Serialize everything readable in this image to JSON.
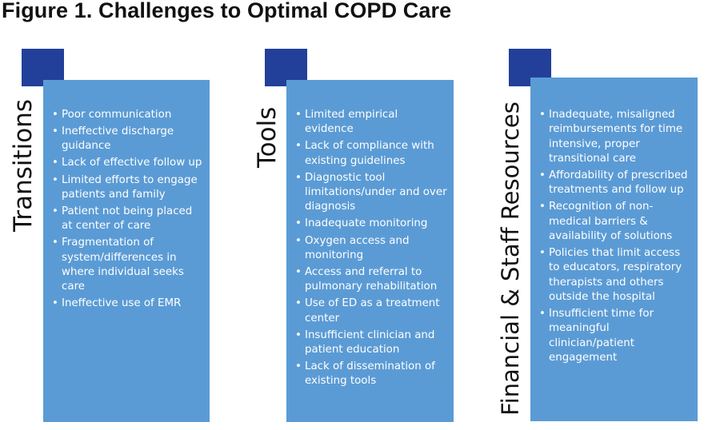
{
  "figure": {
    "title": "Figure 1. Challenges to Optimal COPD Care"
  },
  "colors": {
    "marker": "#22409a",
    "panel": "#5b9bd5",
    "text_on_panel": "#ffffff"
  },
  "columns": [
    {
      "heading": "Transitions",
      "items": [
        "Poor communication",
        "Ineffective discharge guidance",
        "Lack of effective follow up",
        "Limited efforts to engage patients and family",
        "Patient not being placed at center of care",
        "Fragmentation of system/differences in where individual seeks care",
        "Ineffective use of EMR"
      ]
    },
    {
      "heading": "Tools",
      "items": [
        "Limited empirical evidence",
        "Lack of compliance with existing guidelines",
        "Diagnostic tool limitations/under and over diagnosis",
        "Inadequate monitoring",
        "Oxygen access and monitoring",
        "Access and referral to pulmonary rehabilitation",
        "Use of ED as a treatment center",
        "Insufficient clinician and patient education",
        "Lack of dissemination of existing tools"
      ]
    },
    {
      "heading": "Financial & Staff Resources",
      "items": [
        "Inadequate, misaligned reimbursements for time intensive, proper transitional care",
        "Affordability of prescribed treatments and follow up",
        "Recognition of non-medical barriers & availability of solutions",
        "Policies that limit access to educators, respiratory therapists and others outside the hospital",
        "Insufficient time for meaningful clinician/patient engagement"
      ]
    }
  ]
}
